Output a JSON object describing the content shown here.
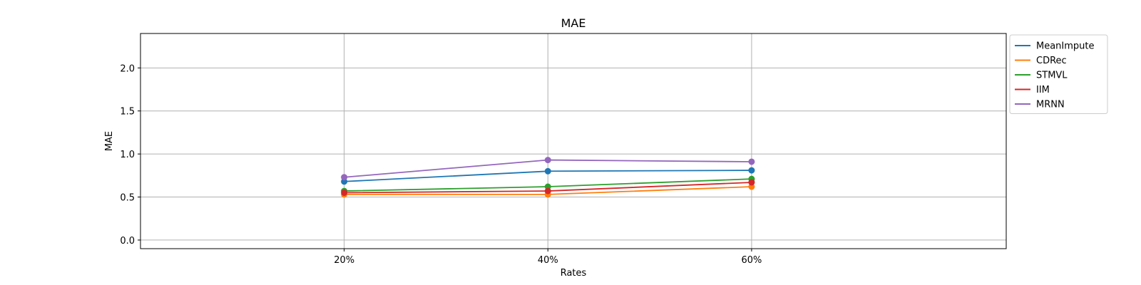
{
  "chart_data": {
    "type": "line",
    "title": "MAE",
    "xlabel": "Rates",
    "ylabel": "MAE",
    "categories": [
      "20%",
      "40%",
      "60%"
    ],
    "x": [
      0.2,
      0.4,
      0.6
    ],
    "xlim": [
      0.0,
      0.85
    ],
    "ylim": [
      -0.1,
      2.4
    ],
    "yticks": [
      0.0,
      0.5,
      1.0,
      1.5,
      2.0
    ],
    "ytick_labels": [
      "0.0",
      "0.5",
      "1.0",
      "1.5",
      "2.0"
    ],
    "grid": true,
    "legend_position": "outside-right",
    "series": [
      {
        "name": "MeanImpute",
        "color": "#1f77b4",
        "values": [
          0.68,
          0.8,
          0.81
        ]
      },
      {
        "name": "CDRec",
        "color": "#ff7f0e",
        "values": [
          0.53,
          0.53,
          0.62
        ]
      },
      {
        "name": "STMVL",
        "color": "#2ca02c",
        "values": [
          0.57,
          0.62,
          0.71
        ]
      },
      {
        "name": "IIM",
        "color": "#d62728",
        "values": [
          0.55,
          0.57,
          0.67
        ]
      },
      {
        "name": "MRNN",
        "color": "#9467bd",
        "values": [
          0.73,
          0.93,
          0.91
        ]
      }
    ]
  }
}
